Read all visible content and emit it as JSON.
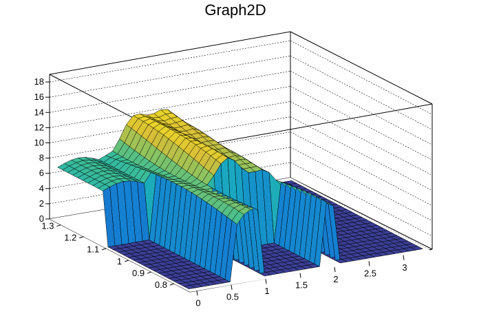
{
  "chart_data": {
    "type": "surface",
    "title": "Graph2D",
    "xlabel": "",
    "ylabel": "",
    "zlabel": "",
    "x_ticks": [
      "0",
      "0.5",
      "1",
      "1.5",
      "2",
      "2.5",
      "3"
    ],
    "y_ticks": [
      "0.8",
      "0.9",
      "1",
      "1.1",
      "1.2",
      "1.3"
    ],
    "z_ticks": [
      "0",
      "2",
      "4",
      "6",
      "8",
      "10",
      "12",
      "14",
      "16",
      "18"
    ],
    "xlim": [
      -0.1,
      3.4
    ],
    "ylim": [
      0.73,
      1.35
    ],
    "zlim": [
      0,
      19
    ],
    "grid": true,
    "colormap": "viridis-like",
    "colors": {
      "low": "#2a2d8c",
      "mid": "#21a69f",
      "high": "#f6e526",
      "mesh": "#000000"
    }
  }
}
